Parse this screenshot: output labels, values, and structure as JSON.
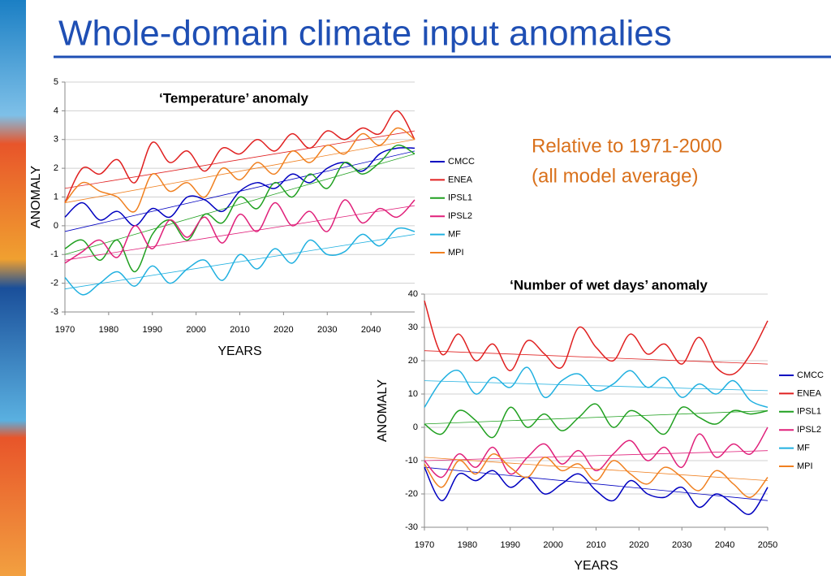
{
  "title": "Whole-domain climate input anomalies",
  "annotation": [
    "Relative to 1971-2000",
    "(all model average)"
  ],
  "chart_data": [
    {
      "type": "line",
      "title": "‘Temperature’ anomaly",
      "xlabel": "YEARS",
      "ylabel": "ANOMALY",
      "legend": "right",
      "grid": true,
      "x": [
        1970,
        1974,
        1978,
        1982,
        1986,
        1990,
        1994,
        1998,
        2002,
        2006,
        2010,
        2014,
        2018,
        2022,
        2026,
        2030,
        2034,
        2038,
        2042,
        2046,
        2050
      ],
      "xlim": [
        1970,
        2050
      ],
      "xticks": [
        1970,
        1980,
        1990,
        2000,
        2010,
        2020,
        2030,
        2040
      ],
      "ylim": [
        -3,
        5
      ],
      "yticks": [
        -3,
        -2,
        -1,
        0,
        1,
        2,
        3,
        4,
        5
      ],
      "series": [
        {
          "name": "CMCC",
          "color": "#0000c0",
          "trend": [
            -0.2,
            2.6
          ],
          "values": [
            0.3,
            0.8,
            0.2,
            0.5,
            0.0,
            0.6,
            0.3,
            1.0,
            0.9,
            0.5,
            1.2,
            1.5,
            1.3,
            1.8,
            1.5,
            2.0,
            2.2,
            1.9,
            2.5,
            2.7,
            2.7
          ]
        },
        {
          "name": "ENEA",
          "color": "#e02020",
          "trend": [
            1.3,
            3.3
          ],
          "values": [
            0.8,
            2.0,
            1.8,
            2.3,
            1.5,
            2.9,
            2.2,
            2.6,
            1.9,
            2.7,
            2.5,
            3.0,
            2.6,
            3.2,
            2.7,
            3.3,
            3.0,
            3.4,
            3.2,
            4.0,
            3.0
          ]
        },
        {
          "name": "IPSL1",
          "color": "#20a020",
          "trend": [
            -1.0,
            2.5
          ],
          "values": [
            -0.8,
            -0.5,
            -1.2,
            -0.5,
            -1.6,
            -0.3,
            0.2,
            -0.5,
            0.4,
            0.1,
            1.0,
            0.6,
            1.5,
            1.0,
            1.8,
            1.3,
            2.2,
            1.8,
            2.2,
            2.8,
            2.5
          ]
        },
        {
          "name": "IPSL2",
          "color": "#e0207a",
          "trend": [
            -1.2,
            0.7
          ],
          "values": [
            -1.3,
            -0.9,
            -0.5,
            -1.1,
            0.0,
            -0.8,
            0.2,
            -0.4,
            0.3,
            -0.6,
            0.4,
            -0.2,
            0.8,
            0.0,
            0.5,
            -0.2,
            0.9,
            0.1,
            0.6,
            0.3,
            0.9
          ]
        },
        {
          "name": "MF",
          "color": "#20b0e0",
          "trend": [
            -2.2,
            -0.3
          ],
          "values": [
            -1.8,
            -2.4,
            -2.0,
            -1.6,
            -2.1,
            -1.4,
            -2.0,
            -1.5,
            -1.2,
            -1.9,
            -1.0,
            -1.5,
            -0.8,
            -1.3,
            -0.5,
            -1.0,
            -0.9,
            -0.3,
            -0.7,
            -0.1,
            -0.2
          ]
        },
        {
          "name": "MPI",
          "color": "#f08020",
          "trend": [
            0.8,
            3.0
          ],
          "values": [
            0.8,
            1.5,
            1.2,
            1.0,
            0.5,
            1.8,
            1.2,
            1.5,
            1.0,
            2.0,
            1.6,
            2.2,
            1.8,
            2.6,
            2.2,
            2.8,
            2.5,
            3.2,
            2.8,
            3.4,
            3.0
          ]
        }
      ]
    },
    {
      "type": "line",
      "title": "‘Number of wet days’ anomaly",
      "xlabel": "YEARS",
      "ylabel": "ANOMALY",
      "legend": "right",
      "grid": true,
      "x": [
        1970,
        1974,
        1978,
        1982,
        1986,
        1990,
        1994,
        1998,
        2002,
        2006,
        2010,
        2014,
        2018,
        2022,
        2026,
        2030,
        2034,
        2038,
        2042,
        2046,
        2050
      ],
      "xlim": [
        1970,
        2050
      ],
      "xticks": [
        1970,
        1980,
        1990,
        2000,
        2010,
        2020,
        2030,
        2040,
        2050
      ],
      "ylim": [
        -30,
        40
      ],
      "yticks": [
        -30,
        -20,
        -10,
        0,
        10,
        20,
        30,
        40
      ],
      "series": [
        {
          "name": "CMCC",
          "color": "#0000c0",
          "trend": [
            -12,
            -22
          ],
          "values": [
            -12,
            -22,
            -14,
            -16,
            -13,
            -18,
            -15,
            -20,
            -17,
            -14,
            -19,
            -22,
            -16,
            -20,
            -21,
            -18,
            -24,
            -20,
            -23,
            -26,
            -18
          ]
        },
        {
          "name": "ENEA",
          "color": "#e02020",
          "trend": [
            23,
            19
          ],
          "values": [
            38,
            22,
            28,
            20,
            25,
            17,
            26,
            22,
            18,
            30,
            24,
            20,
            28,
            22,
            25,
            19,
            27,
            18,
            16,
            22,
            32
          ]
        },
        {
          "name": "IPSL1",
          "color": "#20a020",
          "trend": [
            1,
            5
          ],
          "values": [
            1,
            -2,
            5,
            2,
            -3,
            6,
            0,
            4,
            -1,
            3,
            7,
            0,
            5,
            2,
            -2,
            6,
            3,
            1,
            5,
            4,
            5
          ]
        },
        {
          "name": "IPSL2",
          "color": "#e0207a",
          "trend": [
            -10,
            -7
          ],
          "values": [
            -10,
            -15,
            -8,
            -12,
            -6,
            -14,
            -9,
            -5,
            -11,
            -7,
            -13,
            -8,
            -4,
            -10,
            -6,
            -12,
            -2,
            -9,
            -5,
            -8,
            0
          ]
        },
        {
          "name": "MF",
          "color": "#20b0e0",
          "trend": [
            14,
            11
          ],
          "values": [
            6,
            14,
            17,
            10,
            15,
            12,
            18,
            9,
            14,
            16,
            11,
            13,
            17,
            12,
            15,
            9,
            13,
            10,
            14,
            8,
            6
          ]
        },
        {
          "name": "MPI",
          "color": "#f08020",
          "trend": [
            -9,
            -16
          ],
          "values": [
            -11,
            -18,
            -10,
            -14,
            -8,
            -12,
            -15,
            -9,
            -13,
            -11,
            -16,
            -10,
            -14,
            -17,
            -12,
            -15,
            -19,
            -13,
            -17,
            -21,
            -15
          ]
        }
      ]
    }
  ]
}
